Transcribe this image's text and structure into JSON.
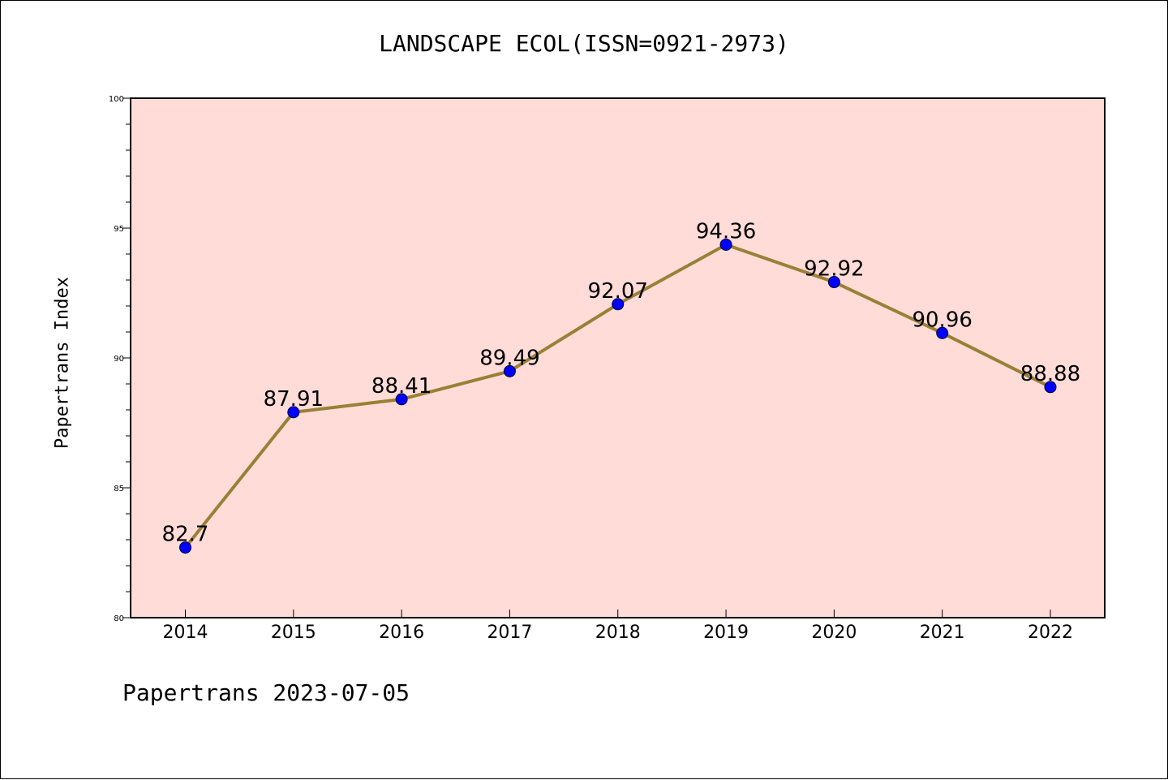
{
  "chart_data": {
    "type": "line",
    "title": "LANDSCAPE ECOL(ISSN=0921-2973)",
    "xlabel": "",
    "ylabel": "Papertrans Index",
    "categories": [
      "2014",
      "2015",
      "2016",
      "2017",
      "2018",
      "2019",
      "2020",
      "2021",
      "2022"
    ],
    "series": [
      {
        "values": [
          82.7,
          87.91,
          88.41,
          89.49,
          92.07,
          94.36,
          92.92,
          90.96,
          88.88
        ],
        "labels": [
          "82.7",
          "87.91",
          "88.41",
          "89.49",
          "92.07",
          "94.36",
          "92.92",
          "90.96",
          "88.88"
        ],
        "line_color": "#9a8036",
        "marker_color": "#0000ff"
      }
    ],
    "ylim": [
      80,
      100
    ],
    "yticks": [
      "80",
      "85",
      "90",
      "95",
      "100"
    ],
    "plot_background": "#ffdcd8",
    "grid": false
  },
  "footer": "Papertrans 2023-07-05"
}
